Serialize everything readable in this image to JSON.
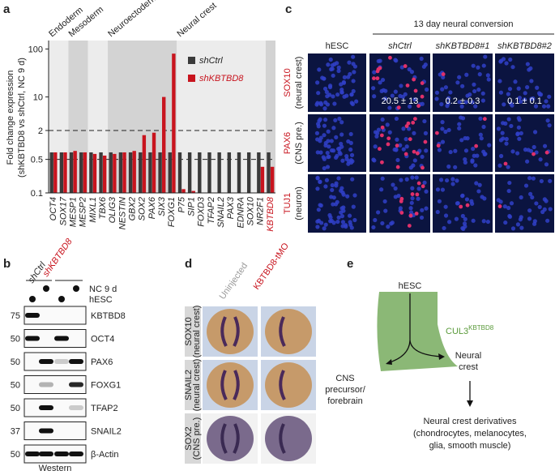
{
  "figure": {
    "panel_labels": [
      "a",
      "b",
      "c",
      "d",
      "e"
    ]
  },
  "chart_data": {
    "type": "bar",
    "log": true,
    "categories": [
      "OCT4",
      "SOX17",
      "MESP1",
      "MESP2",
      "MIXL1",
      "TBX6",
      "OLIG3",
      "NESTIN",
      "GBX2",
      "SOX2",
      "PAX6",
      "SIX3",
      "FOXG1",
      "P75",
      "SIP1",
      "FOXD3",
      "TFAP2",
      "SNAIL2",
      "PAX3",
      "EDNRA",
      "SOX10",
      "NR2F1",
      "KBTBD8"
    ],
    "series": [
      {
        "name": "shCtrl",
        "color": "#3a3a3a",
        "values": [
          0.7,
          0.7,
          0.7,
          0.7,
          0.7,
          0.7,
          0.7,
          0.7,
          0.7,
          0.7,
          0.7,
          0.7,
          0.7,
          0.7,
          0.7,
          0.7,
          0.7,
          0.7,
          0.7,
          0.7,
          0.7,
          0.7,
          0.7
        ]
      },
      {
        "name": "shKBTBD8",
        "color": "#c8141e",
        "values": [
          0.7,
          0.7,
          0.75,
          0.7,
          0.65,
          0.6,
          0.65,
          0.7,
          0.75,
          1.6,
          1.8,
          10,
          80,
          0.12,
          0.11,
          0.1,
          0.1,
          0.1,
          0.1,
          0.1,
          0.1,
          0.35,
          0.35
        ]
      }
    ],
    "ylabel": [
      "Fold change expression",
      "(shKBTBD8 vs shCtrl, NC 9 d)"
    ],
    "groups": [
      "Endoderm",
      "Mesoderm",
      "Neuroectoderm",
      "Neural crest"
    ],
    "ylim": [
      0.1,
      150
    ],
    "yticks": [
      0.1,
      0.5,
      2,
      10,
      100
    ],
    "reference_lines": [
      2,
      0.5
    ],
    "legend": "upper right"
  },
  "panel_c": {
    "title": "13 day neural conversion",
    "columns": [
      "hESC",
      "shCtrl",
      "shKBTBD8#1",
      "shKBTBD8#2"
    ],
    "rows": [
      {
        "marker": "SOX10",
        "label": "(neural crest)"
      },
      {
        "marker": "PAX6",
        "label": "(CNS pre.)"
      },
      {
        "marker": "TUJ1",
        "label": "(neuron)"
      }
    ],
    "quantification": [
      "20.5 ± 13",
      "0.2 ± 0.3",
      "0.1 ± 0.1"
    ]
  },
  "panel_b": {
    "lanes": [
      "shCtrl",
      "shKBTBD8"
    ],
    "conditions": [
      "NC 9 d",
      "hESC"
    ],
    "blots": [
      {
        "mw": 75,
        "protein": "KBTBD8"
      },
      {
        "mw": 50,
        "protein": "OCT4"
      },
      {
        "mw": 50,
        "protein": "PAX6"
      },
      {
        "mw": 50,
        "protein": "FOXG1"
      },
      {
        "mw": 50,
        "protein": "TFAP2"
      },
      {
        "mw": 37,
        "protein": "SNAIL2"
      },
      {
        "mw": 50,
        "protein": "β-Actin"
      }
    ],
    "footer": "Western"
  },
  "panel_d": {
    "columns": [
      "Uninjected",
      "KBTBD8-tMO"
    ],
    "rows": [
      {
        "marker": "SOX10",
        "label": "(neural crest)"
      },
      {
        "marker": "SNAIL2",
        "label": "(neural crest)"
      },
      {
        "marker": "SOX2",
        "label": "(CNS pre.)"
      }
    ]
  },
  "panel_e": {
    "top": "hESC",
    "enzyme": "CUL3",
    "enzyme_sup": "KBTBD8",
    "left": [
      "CNS",
      "precursor/",
      "forebrain"
    ],
    "right": [
      "Neural",
      "crest"
    ],
    "bottom": [
      "Neural crest derivatives",
      "(chondrocytes, melanocytes,",
      "glia, smooth muscle)"
    ]
  }
}
